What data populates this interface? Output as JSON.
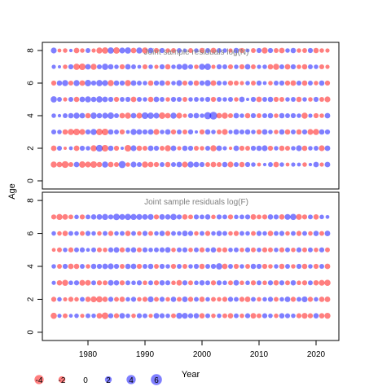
{
  "chart_data": {
    "type": "scatter",
    "xlabel": "Year",
    "ylabel": "Age",
    "xlim": [
      1972,
      2024
    ],
    "x_ticks": [
      1980,
      1990,
      2000,
      2010,
      2020
    ],
    "colors": {
      "positive": "#0000ff",
      "negative": "#ff0000",
      "frame": "#000000",
      "title": "#808080"
    },
    "panels": [
      {
        "title": "Joint sample residuals log(N)",
        "ylim": [
          -0.5,
          8.5
        ],
        "y_ticks": [
          0,
          2,
          4,
          6,
          8
        ],
        "ages": [
          1,
          2,
          3,
          4,
          5,
          6,
          7,
          8
        ],
        "year_start": 1974,
        "year_end": 2022,
        "residuals": [
          [
            -2.5,
            -2.0,
            -3.2,
            -1.5,
            2.0,
            -2.8,
            -2.2,
            -3.0,
            -1.8,
            2.5,
            -2.0,
            -1.5,
            3.5,
            -1.2,
            2.2,
            1.5,
            -2.5,
            -2.0,
            -1.6,
            1.4,
            -1.8,
            1.5,
            2.0,
            -2.2,
            2.4,
            2.0,
            1.6,
            -1.4,
            -2.0,
            -1.5,
            1.8,
            -2.2,
            1.5,
            -1.8,
            1.6,
            1.2,
            -0.8,
            0.6,
            1.4,
            -2.0,
            1.2,
            -0.8,
            1.0,
            0.8,
            -1.2,
            0.6,
            2.0,
            -1.0,
            2.0
          ],
          [
            -2.0,
            1.5,
            -0.5,
            0.8,
            -2.0,
            1.6,
            1.2,
            -2.5,
            3.2,
            -3.0,
            1.8,
            -1.6,
            0.5,
            -3.0,
            2.2,
            -1.8,
            -1.5,
            2.0,
            1.6,
            -1.4,
            -2.4,
            2.0,
            -1.0,
            1.8,
            1.6,
            -1.5,
            -1.2,
            1.5,
            -2.5,
            2.0,
            1.0,
            -0.6,
            2.0,
            -1.6,
            -1.4,
            1.6,
            1.8,
            2.2,
            -1.6,
            1.2,
            -1.8,
            -1.5,
            1.2,
            2.2,
            -1.8,
            1.2,
            1.4,
            -2.2,
            2.0
          ],
          [
            1.5,
            1.2,
            -1.8,
            -2.5,
            -3.0,
            -2.2,
            1.6,
            2.5,
            -2.8,
            -3.0,
            1.8,
            1.4,
            -1.6,
            0.8,
            2.4,
            2.0,
            1.6,
            2.0,
            -2.2,
            1.2,
            2.0,
            -1.6,
            1.4,
            -1.4,
            1.6,
            0.5,
            -1.6,
            1.8,
            1.2,
            -1.4,
            -2.2,
            1.0,
            2.0,
            1.5,
            1.8,
            1.2,
            -1.6,
            2.0,
            1.2,
            -1.2,
            1.8,
            -1.8,
            1.4,
            -1.8,
            1.6,
            -2.2,
            -2.5,
            1.8,
            1.6
          ],
          [
            1.2,
            0.6,
            1.4,
            1.8,
            2.4,
            2.0,
            -1.8,
            2.6,
            1.8,
            2.2,
            2.8,
            1.5,
            -2.0,
            -2.4,
            2.0,
            -2.2,
            3.0,
            2.6,
            2.2,
            -2.8,
            -2.0,
            2.4,
            -2.2,
            -1.0,
            1.6,
            2.0,
            1.2,
            3.5,
            4.2,
            -2.0,
            -2.5,
            -1.5,
            2.0,
            1.2,
            -1.8,
            1.6,
            -1.4,
            1.5,
            1.8,
            -1.2,
            1.8,
            1.4,
            1.6,
            1.2,
            -2.5,
            1.0,
            -1.6,
            -1.2,
            2.0
          ],
          [
            2.6,
            1.4,
            -1.0,
            1.5,
            -1.8,
            2.0,
            2.4,
            1.8,
            2.6,
            2.0,
            1.6,
            -1.6,
            1.4,
            1.6,
            -2.0,
            1.5,
            1.2,
            -1.8,
            2.0,
            1.4,
            -1.2,
            1.6,
            1.5,
            -1.4,
            1.2,
            1.4,
            1.2,
            1.6,
            -1.6,
            1.4,
            1.2,
            1.5,
            -1.2,
            2.0,
            0.5,
            1.6,
            -2.0,
            1.4,
            1.8,
            -1.6,
            -1.5,
            1.2,
            1.4,
            -1.8,
            1.2,
            -1.2,
            1.6,
            -1.4,
            -2.2
          ],
          [
            -1.6,
            1.8,
            2.5,
            -1.5,
            2.4,
            -2.0,
            2.8,
            1.6,
            2.6,
            2.2,
            -2.4,
            1.8,
            1.6,
            -2.4,
            2.0,
            1.4,
            1.2,
            -1.8,
            1.6,
            2.0,
            -1.5,
            1.2,
            2.2,
            -1.5,
            1.4,
            -1.8,
            1.6,
            2.4,
            -2.0,
            1.5,
            1.2,
            -1.6,
            -1.4,
            -1.0,
            1.2,
            -1.4,
            1.6,
            0.8,
            -1.2,
            1.4,
            1.6,
            -1.6,
            -2.0,
            1.5,
            -1.8,
            1.4,
            -1.2,
            1.8,
            -1.6
          ],
          [
            1.0,
            0.5,
            -1.2,
            1.6,
            -2.6,
            -3.0,
            2.0,
            -2.4,
            1.5,
            2.6,
            1.8,
            1.2,
            -1.6,
            2.0,
            1.4,
            0.8,
            -1.5,
            1.2,
            -1.0,
            1.6,
            -1.8,
            1.2,
            2.0,
            2.4,
            1.5,
            -1.2,
            2.5,
            2.8,
            -1.0,
            1.6,
            1.4,
            -1.5,
            1.2,
            -1.6,
            2.0,
            -1.4,
            1.0,
            1.2,
            -1.8,
            -2.5,
            1.4,
            -2.0,
            1.6,
            -1.2,
            -1.8,
            1.4,
            1.2,
            -1.5,
            -1.0
          ],
          [
            2.2,
            -0.8,
            -1.2,
            0.6,
            -2.0,
            -1.2,
            1.5,
            -1.0,
            -2.4,
            -2.6,
            2.6,
            -2.8,
            2.2,
            2.6,
            -2.0,
            2.4,
            -2.4,
            2.0,
            -1.6,
            1.6,
            -1.2,
            -1.5,
            1.4,
            0.8,
            -1.4,
            1.2,
            -1.8,
            1.5,
            -2.0,
            1.4,
            1.2,
            -1.0,
            1.8,
            -1.6,
            0.8,
            -1.4,
            1.6,
            -2.4,
            1.6,
            -1.4,
            -2.0,
            1.2,
            1.8,
            -1.2,
            -1.4,
            1.6,
            -1.8,
            -1.2,
            -1.0
          ]
        ]
      },
      {
        "title": "Joint sample residuals log(F)",
        "ylim": [
          -0.5,
          8.5
        ],
        "y_ticks": [
          0,
          2,
          4,
          6,
          8
        ],
        "ages": [
          1,
          2,
          3,
          4,
          5,
          6,
          7
        ],
        "year_start": 1974,
        "year_end": 2022,
        "residuals": [
          [
            -2.6,
            1.0,
            -1.4,
            0.8,
            1.2,
            -1.0,
            1.4,
            1.2,
            -2.0,
            -3.0,
            1.6,
            -1.6,
            2.0,
            1.2,
            -1.2,
            1.6,
            1.4,
            -1.0,
            2.0,
            1.6,
            1.2,
            -1.4,
            2.4,
            2.2,
            1.6,
            1.8,
            -1.8,
            1.4,
            -1.2,
            1.2,
            -1.4,
            -1.8,
            1.4,
            -1.2,
            1.6,
            -2.0,
            -1.4,
            1.6,
            1.2,
            -1.2,
            1.8,
            1.5,
            1.2,
            -1.6,
            -2.2,
            -1.6,
            1.8,
            -1.8,
            -2.4
          ],
          [
            -1.6,
            1.2,
            -1.0,
            -1.6,
            -1.2,
            1.4,
            -1.8,
            -2.4,
            -2.6,
            -1.8,
            1.6,
            -1.4,
            -1.8,
            1.2,
            1.6,
            -1.2,
            -1.6,
            2.2,
            -1.4,
            1.6,
            -1.2,
            1.8,
            -1.4,
            2.0,
            -1.6,
            1.4,
            -1.8,
            1.2,
            -1.4,
            -1.2,
            -1.6,
            1.6,
            1.4,
            -1.6,
            -2.0,
            1.4,
            -1.2,
            1.2,
            1.6,
            -1.4,
            1.2,
            2.0,
            -1.6,
            1.4,
            2.2,
            -1.6,
            1.2,
            -1.8,
            -2.0
          ],
          [
            1.0,
            -1.8,
            -2.4,
            1.2,
            1.6,
            -2.2,
            -2.0,
            1.4,
            -1.6,
            -1.4,
            2.0,
            1.8,
            -1.6,
            1.4,
            1.2,
            1.6,
            -1.2,
            1.4,
            -1.6,
            1.8,
            1.5,
            -1.2,
            -2.0,
            1.6,
            -1.4,
            1.2,
            1.8,
            1.4,
            -1.6,
            1.6,
            1.2,
            -1.4,
            2.0,
            -1.2,
            1.2,
            -1.6,
            1.4,
            -1.2,
            1.6,
            -1.8,
            1.6,
            -1.4,
            1.8,
            -1.2,
            -1.6,
            1.4,
            -1.8,
            -2.2,
            -2.6
          ],
          [
            1.2,
            -1.4,
            1.6,
            -2.0,
            -1.8,
            1.4,
            -1.2,
            1.8,
            1.6,
            2.0,
            2.2,
            1.6,
            -1.4,
            1.8,
            2.0,
            -1.6,
            1.4,
            1.8,
            -1.4,
            1.6,
            1.2,
            -1.6,
            1.4,
            -1.4,
            1.2,
            1.6,
            -1.8,
            1.4,
            1.6,
            2.6,
            -2.0,
            1.4,
            -1.6,
            1.2,
            -1.4,
            1.8,
            1.6,
            -1.6,
            -1.2,
            1.2,
            -1.8,
            1.4,
            -1.2,
            1.6,
            -1.8,
            1.2,
            -1.6,
            1.4,
            -2.0
          ],
          [
            -0.8,
            -1.4,
            1.2,
            -1.6,
            1.4,
            1.6,
            0.8,
            1.4,
            -1.4,
            -1.2,
            1.6,
            2.0,
            -1.6,
            1.4,
            1.8,
            -1.4,
            1.6,
            1.2,
            1.4,
            1.6,
            2.0,
            -1.2,
            1.4,
            1.6,
            -1.2,
            1.4,
            -1.6,
            1.2,
            1.8,
            -1.4,
            -1.6,
            1.2,
            1.4,
            -1.2,
            1.6,
            -1.4,
            1.2,
            -1.6,
            -1.4,
            1.2,
            -1.6,
            1.4,
            -1.2,
            1.6,
            -1.4,
            1.4,
            -1.2,
            1.6,
            -1.4
          ],
          [
            1.2,
            -1.2,
            -1.8,
            1.4,
            1.2,
            -1.4,
            1.6,
            1.2,
            -1.2,
            1.4,
            -1.6,
            1.2,
            1.4,
            -1.8,
            1.4,
            -1.2,
            1.6,
            -1.4,
            1.2,
            1.8,
            -1.6,
            1.4,
            1.2,
            2.0,
            1.6,
            -1.2,
            1.4,
            -1.6,
            1.2,
            1.8,
            1.4,
            -1.2,
            -1.6,
            1.4,
            1.2,
            -1.4,
            1.6,
            1.2,
            -1.8,
            1.4,
            1.6,
            -1.2,
            1.4,
            -1.6,
            1.4,
            -1.2,
            1.8,
            -1.4,
            2.0
          ],
          [
            -1.6,
            -2.4,
            -2.0,
            -1.4,
            1.2,
            -1.6,
            1.4,
            1.8,
            2.0,
            2.4,
            1.6,
            2.8,
            2.2,
            2.6,
            2.4,
            2.2,
            2.0,
            2.2,
            -1.6,
            2.0,
            1.8,
            2.6,
            1.6,
            -1.8,
            -1.4,
            1.6,
            1.4,
            1.8,
            -1.2,
            1.6,
            1.4,
            -1.6,
            1.2,
            1.4,
            1.6,
            -2.0,
            -1.4,
            -1.6,
            1.8,
            1.6,
            -1.8,
            2.2,
            2.6,
            -2.2,
            -1.6,
            1.4,
            -1.8,
            1.2,
            0.8
          ]
        ]
      }
    ],
    "size_legend": {
      "values": [
        -4,
        -2,
        0,
        2,
        4,
        6
      ],
      "labels": [
        "-4",
        "-2",
        "0",
        "2",
        "4",
        "6"
      ]
    }
  }
}
